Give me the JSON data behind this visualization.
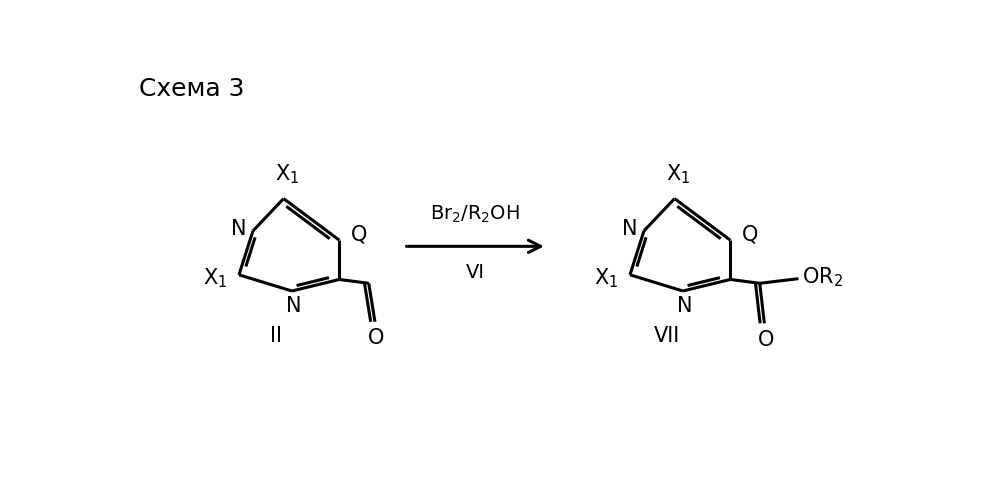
{
  "title": "Схема 3",
  "background_color": "#ffffff",
  "line_color": "#000000",
  "line_width": 2.2,
  "text_fontsize": 15,
  "label_II": "II",
  "label_VII": "VII",
  "arrow_label_top": "Br₂/R₂OH",
  "arrow_label_bot": "VI"
}
